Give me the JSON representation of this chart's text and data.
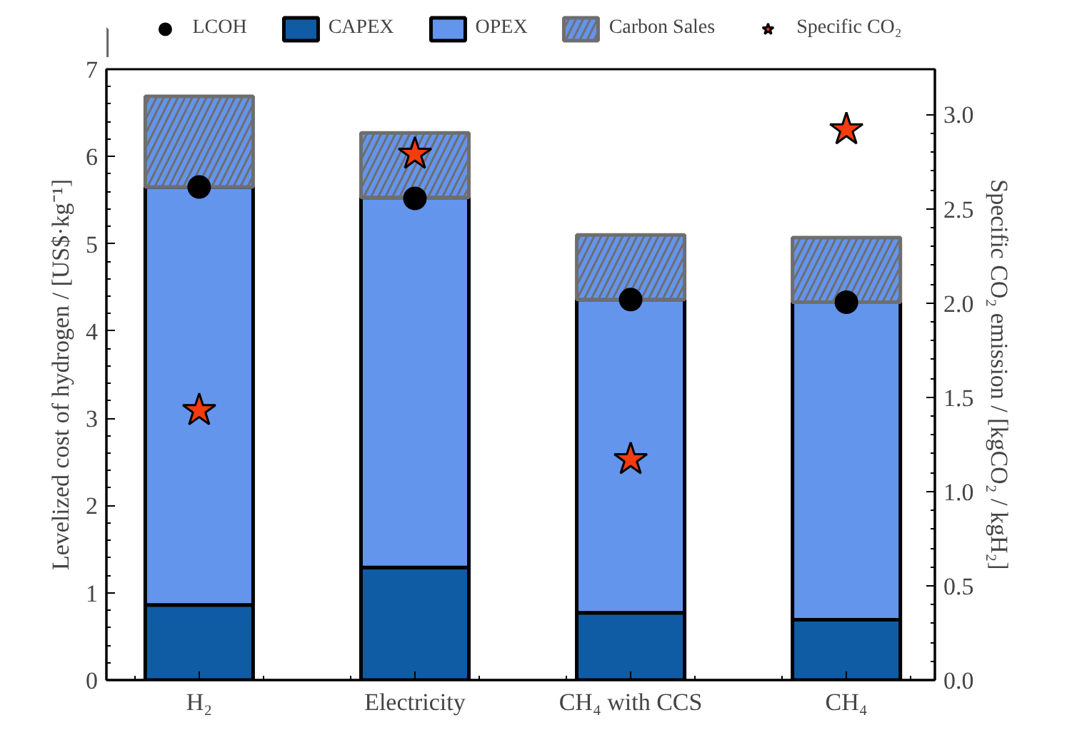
{
  "chart_data": {
    "type": "bar",
    "stacked": true,
    "categories": [
      "H₂",
      "Electricity",
      "CH₄ with CCS",
      "CH₄"
    ],
    "ylabel": "Levelized cost of hydrogen / [US$·kg⁻¹]",
    "y2label": "Specific CO₂ emission / [kgCO₂ / kgH₂]",
    "ylim": [
      0,
      7
    ],
    "yticks": [
      0,
      1,
      2,
      3,
      4,
      5,
      6,
      7
    ],
    "y2lim": [
      0,
      3.24
    ],
    "y2ticks": [
      {
        "value": 0,
        "label": "0.0"
      },
      0.5,
      {
        "value": 1,
        "label": "1.0"
      },
      1.5,
      {
        "value": 2,
        "label": "2.0"
      },
      2.5,
      {
        "value": 3,
        "label": "3.0"
      }
    ],
    "legend": "top",
    "grid": false,
    "series": [
      {
        "name": "LCOH",
        "type": "scatter",
        "marker": "circle",
        "color": "#000000",
        "values": [
          5.65,
          5.52,
          4.36,
          4.33
        ]
      },
      {
        "name": "CAPEX",
        "color": "#0f5ca5",
        "values": [
          0.86,
          1.29,
          0.77,
          0.69
        ]
      },
      {
        "name": "OPEX",
        "color": "#6495ed",
        "values": [
          4.79,
          4.24,
          3.59,
          3.64
        ]
      },
      {
        "name": "Carbon Sales",
        "color": "#6495ed",
        "values": [
          1.04,
          0.74,
          0.74,
          0.74
        ]
      },
      {
        "name": "Specific CO₂",
        "type": "scatter",
        "marker": "star",
        "axis": "y2",
        "color": "#f53c0f",
        "values": [
          1.43,
          2.79,
          1.17,
          2.92
        ]
      }
    ]
  }
}
